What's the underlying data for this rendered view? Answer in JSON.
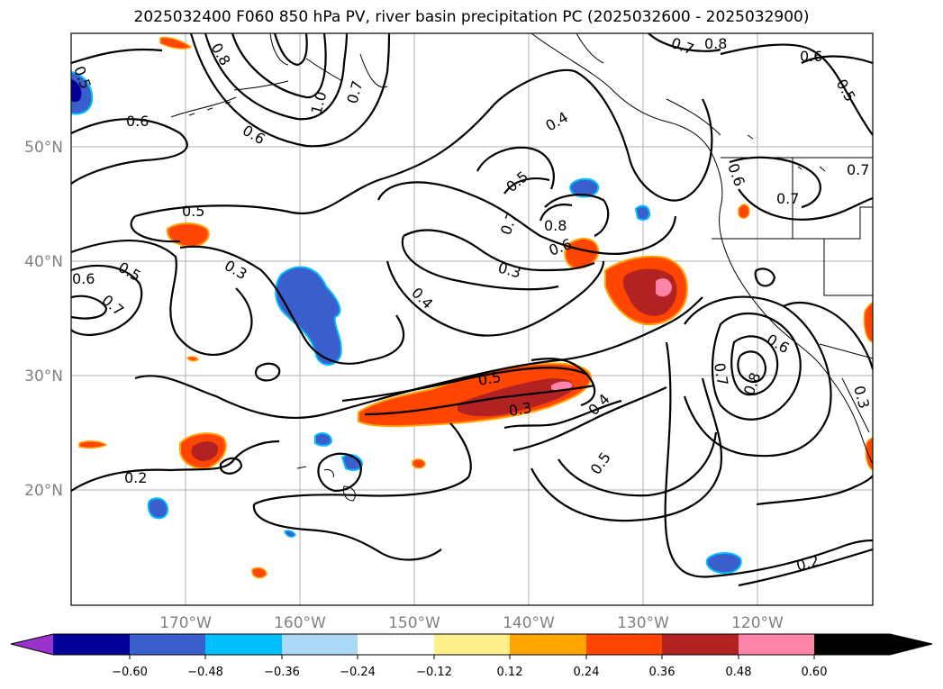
{
  "title": "2025032400 F060 850 hPa PV, river basin precipitation PC (2025032600 - 2025032900)",
  "map": {
    "lat_labels": [
      "50°N",
      "40°N",
      "30°N",
      "20°N"
    ],
    "lon_labels": [
      "170°W",
      "160°W",
      "150°W",
      "140°W",
      "130°W",
      "120°W"
    ],
    "contour_labels": [
      "0.5",
      "0.6",
      "0.8",
      "1.0",
      "0.7",
      "0.6",
      "0.5",
      "0.3",
      "0.6",
      "0.5",
      "0.7",
      "0.4",
      "0.5",
      "0.7",
      "0.8",
      "0.6",
      "0.3",
      "0.4",
      "0.5",
      "0.3",
      "0.4",
      "0.5",
      "0.7",
      "0.8",
      "0.6",
      "0.2",
      "0.2",
      "0.7",
      "0.8",
      "0.6",
      "0.5",
      "0.7",
      "0.7",
      "0.3",
      "0.6"
    ]
  },
  "colorbar": {
    "colors": [
      "#9933cc",
      "#000099",
      "#3a5fcd",
      "#00bfff",
      "#add8f5",
      "#ffffff",
      "#fff08c",
      "#ffa500",
      "#ff4500",
      "#b22222",
      "#ff85a8"
    ],
    "labels": [
      "−0.60",
      "−0.48",
      "−0.36",
      "−0.24",
      "−0.12",
      "0.12",
      "0.24",
      "0.36",
      "0.48",
      "0.60"
    ]
  }
}
